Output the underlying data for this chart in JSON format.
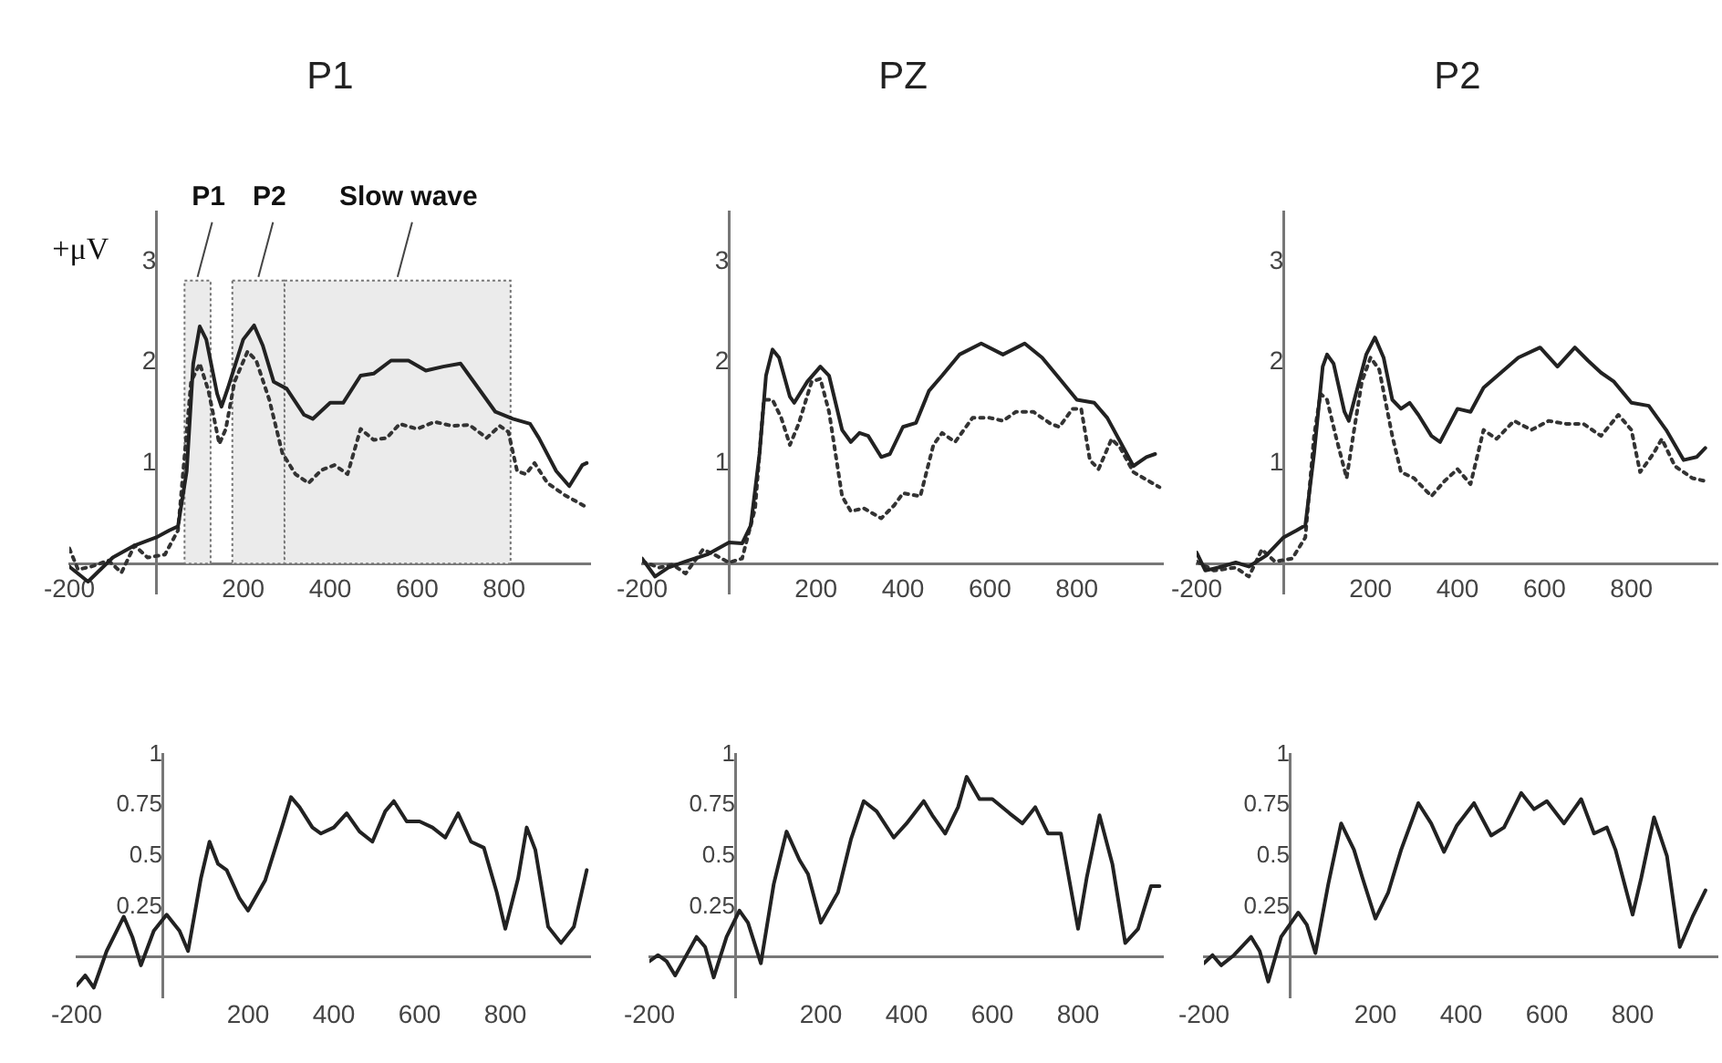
{
  "chart_data": [
    {
      "type": "line",
      "title": "P1",
      "ylabel": "+μV",
      "xlim": [
        -200,
        1000
      ],
      "xticks": [
        -200,
        200,
        400,
        600,
        800
      ],
      "ylim": [
        -0.3,
        3.5
      ],
      "yticks": [
        1,
        2,
        3
      ],
      "bands": [
        {
          "axis": "x",
          "from": 65,
          "to": 125,
          "label": "P1",
          "color": "#ebebeb"
        },
        {
          "axis": "x",
          "from": 175,
          "to": 295,
          "label": "P2",
          "color": "#ebebeb"
        },
        {
          "axis": "x",
          "from": 295,
          "to": 815,
          "label": "Slow wave",
          "color": "#ebebeb"
        }
      ],
      "series": [
        {
          "color": "#222222",
          "line_style": "solid",
          "x": [
            -200,
            -157,
            -100,
            -50,
            0,
            30,
            50,
            70,
            85,
            100,
            115,
            140,
            150,
            165,
            200,
            225,
            245,
            270,
            300,
            340,
            360,
            400,
            430,
            470,
            500,
            540,
            580,
            620,
            660,
            700,
            740,
            780,
            820,
            860,
            880,
            920,
            950,
            980,
            990
          ],
          "values": [
            -0.03,
            -0.18,
            0.06,
            0.18,
            0.26,
            0.33,
            0.37,
            0.92,
            1.99,
            2.36,
            2.23,
            1.69,
            1.56,
            1.75,
            2.23,
            2.37,
            2.17,
            1.81,
            1.74,
            1.48,
            1.44,
            1.6,
            1.6,
            1.87,
            1.89,
            2.02,
            2.02,
            1.92,
            1.96,
            1.99,
            1.75,
            1.51,
            1.44,
            1.39,
            1.25,
            0.92,
            0.77,
            0.98,
            1.0
          ]
        },
        {
          "color": "#333333",
          "line_style": "dotted",
          "x": [
            -200,
            -180,
            -150,
            -110,
            -80,
            -50,
            -20,
            20,
            50,
            80,
            100,
            120,
            145,
            160,
            180,
            210,
            230,
            260,
            290,
            320,
            350,
            380,
            410,
            440,
            470,
            500,
            530,
            560,
            600,
            640,
            680,
            720,
            760,
            790,
            810,
            830,
            850,
            870,
            900,
            940,
            990
          ],
          "values": [
            0.15,
            -0.06,
            -0.03,
            0.03,
            -0.09,
            0.18,
            0.06,
            0.09,
            0.33,
            1.81,
            1.99,
            1.72,
            1.19,
            1.34,
            1.81,
            2.11,
            2.02,
            1.63,
            1.1,
            0.89,
            0.8,
            0.93,
            0.98,
            0.89,
            1.34,
            1.23,
            1.25,
            1.39,
            1.34,
            1.41,
            1.37,
            1.38,
            1.25,
            1.37,
            1.31,
            0.92,
            0.89,
            1.0,
            0.8,
            0.68,
            0.56
          ]
        }
      ]
    },
    {
      "type": "line",
      "title": "PZ",
      "xlim": [
        -200,
        1000
      ],
      "xticks": [
        -200,
        200,
        400,
        600,
        800
      ],
      "ylim": [
        -0.3,
        3.5
      ],
      "yticks": [
        1,
        2,
        3
      ],
      "series": [
        {
          "color": "#222222",
          "line_style": "solid",
          "x": [
            -200,
            -170,
            -140,
            -100,
            -50,
            0,
            30,
            50,
            70,
            85,
            100,
            115,
            140,
            150,
            180,
            210,
            230,
            260,
            280,
            300,
            320,
            350,
            370,
            400,
            430,
            460,
            490,
            530,
            580,
            630,
            680,
            720,
            760,
            800,
            840,
            870,
            900,
            930,
            960,
            980
          ],
          "values": [
            0.05,
            -0.13,
            -0.04,
            0.02,
            0.09,
            0.21,
            0.2,
            0.38,
            1.09,
            1.87,
            2.13,
            2.05,
            1.66,
            1.6,
            1.81,
            1.96,
            1.87,
            1.33,
            1.21,
            1.3,
            1.27,
            1.06,
            1.09,
            1.36,
            1.4,
            1.72,
            1.87,
            2.08,
            2.19,
            2.08,
            2.19,
            2.05,
            1.84,
            1.63,
            1.6,
            1.45,
            1.21,
            0.97,
            1.06,
            1.09
          ]
        },
        {
          "color": "#333333",
          "line_style": "dotted",
          "x": [
            -200,
            -160,
            -130,
            -100,
            -60,
            -30,
            0,
            30,
            60,
            80,
            100,
            120,
            140,
            160,
            190,
            210,
            230,
            260,
            280,
            310,
            350,
            380,
            400,
            440,
            470,
            490,
            520,
            560,
            600,
            630,
            660,
            700,
            740,
            760,
            790,
            810,
            830,
            850,
            880,
            900,
            930,
            990
          ],
          "values": [
            0.02,
            -0.04,
            -0.01,
            -0.1,
            0.14,
            0.08,
            0.01,
            0.05,
            0.55,
            1.63,
            1.63,
            1.45,
            1.18,
            1.39,
            1.81,
            1.84,
            1.51,
            0.67,
            0.52,
            0.55,
            0.45,
            0.58,
            0.7,
            0.67,
            1.18,
            1.3,
            1.21,
            1.45,
            1.45,
            1.42,
            1.51,
            1.51,
            1.39,
            1.36,
            1.54,
            1.54,
            1.03,
            0.94,
            1.24,
            1.15,
            0.91,
            0.76
          ]
        }
      ]
    },
    {
      "type": "line",
      "title": "P2",
      "xlim": [
        -200,
        1000
      ],
      "xticks": [
        -200,
        200,
        400,
        600,
        800
      ],
      "ylim": [
        -0.3,
        3.5
      ],
      "yticks": [
        1,
        2,
        3
      ],
      "series": [
        {
          "color": "#222222",
          "line_style": "solid",
          "x": [
            -200,
            -180,
            -150,
            -110,
            -80,
            -40,
            0,
            30,
            50,
            70,
            90,
            100,
            115,
            140,
            150,
            170,
            190,
            210,
            230,
            250,
            270,
            290,
            310,
            340,
            360,
            400,
            430,
            460,
            500,
            540,
            590,
            630,
            670,
            700,
            730,
            760,
            800,
            840,
            880,
            920,
            950,
            970
          ],
          "values": [
            0.11,
            -0.07,
            -0.04,
            0.01,
            -0.03,
            0.08,
            0.26,
            0.33,
            0.38,
            1.09,
            1.96,
            2.08,
            1.99,
            1.51,
            1.42,
            1.75,
            2.08,
            2.25,
            2.05,
            1.63,
            1.54,
            1.6,
            1.48,
            1.27,
            1.21,
            1.54,
            1.51,
            1.75,
            1.9,
            2.05,
            2.15,
            1.96,
            2.15,
            2.02,
            1.9,
            1.81,
            1.6,
            1.57,
            1.33,
            1.03,
            1.06,
            1.15
          ]
        },
        {
          "color": "#333333",
          "line_style": "dotted",
          "x": [
            -200,
            -160,
            -110,
            -80,
            -50,
            -20,
            20,
            50,
            70,
            85,
            100,
            120,
            145,
            160,
            180,
            200,
            220,
            250,
            270,
            300,
            340,
            370,
            400,
            430,
            460,
            490,
            530,
            570,
            610,
            650,
            690,
            730,
            770,
            800,
            820,
            850,
            870,
            900,
            940,
            970
          ],
          "values": [
            0.02,
            -0.07,
            -0.04,
            -0.13,
            0.14,
            0.02,
            0.05,
            0.26,
            1.27,
            1.69,
            1.63,
            1.27,
            0.85,
            1.27,
            1.81,
            2.05,
            1.93,
            1.27,
            0.91,
            0.85,
            0.67,
            0.82,
            0.94,
            0.79,
            1.33,
            1.24,
            1.42,
            1.33,
            1.42,
            1.39,
            1.39,
            1.27,
            1.48,
            1.33,
            0.91,
            1.09,
            1.24,
            0.97,
            0.85,
            0.82
          ]
        }
      ]
    },
    {
      "type": "line",
      "xlim": [
        -200,
        1000
      ],
      "xticks": [
        -200,
        200,
        400,
        600,
        800
      ],
      "ylim": [
        -0.2,
        1
      ],
      "yticks": [
        0.25,
        0.5,
        0.75,
        1
      ],
      "color": "#222222",
      "x": [
        -200,
        -180,
        -160,
        -130,
        -90,
        -70,
        -50,
        -20,
        10,
        40,
        60,
        90,
        110,
        130,
        150,
        180,
        200,
        240,
        280,
        300,
        320,
        350,
        370,
        400,
        430,
        460,
        490,
        520,
        540,
        570,
        600,
        630,
        660,
        690,
        720,
        750,
        780,
        800,
        830,
        850,
        870,
        900,
        930,
        960,
        990
      ],
      "values": [
        -0.14,
        -0.09,
        -0.15,
        0.03,
        0.2,
        0.1,
        -0.04,
        0.13,
        0.21,
        0.13,
        0.03,
        0.39,
        0.57,
        0.46,
        0.43,
        0.29,
        0.23,
        0.38,
        0.65,
        0.79,
        0.74,
        0.64,
        0.61,
        0.64,
        0.71,
        0.62,
        0.57,
        0.72,
        0.77,
        0.67,
        0.67,
        0.64,
        0.59,
        0.71,
        0.57,
        0.54,
        0.32,
        0.14,
        0.39,
        0.64,
        0.53,
        0.15,
        0.07,
        0.15,
        0.43
      ]
    },
    {
      "type": "line",
      "xlim": [
        -200,
        1000
      ],
      "xticks": [
        -200,
        200,
        400,
        600,
        800
      ],
      "ylim": [
        -0.2,
        1
      ],
      "yticks": [
        0.25,
        0.5,
        0.75,
        1
      ],
      "color": "#222222",
      "x": [
        -200,
        -180,
        -160,
        -140,
        -90,
        -70,
        -50,
        -20,
        10,
        30,
        60,
        90,
        120,
        150,
        170,
        200,
        240,
        270,
        300,
        330,
        370,
        400,
        440,
        460,
        490,
        520,
        540,
        570,
        600,
        640,
        670,
        700,
        730,
        760,
        800,
        820,
        850,
        880,
        910,
        940,
        970,
        990
      ],
      "values": [
        -0.02,
        0.01,
        -0.02,
        -0.09,
        0.1,
        0.05,
        -0.1,
        0.1,
        0.23,
        0.17,
        -0.03,
        0.36,
        0.62,
        0.48,
        0.41,
        0.17,
        0.32,
        0.58,
        0.77,
        0.72,
        0.59,
        0.66,
        0.77,
        0.7,
        0.61,
        0.74,
        0.89,
        0.78,
        0.78,
        0.71,
        0.66,
        0.74,
        0.61,
        0.61,
        0.14,
        0.39,
        0.7,
        0.46,
        0.07,
        0.14,
        0.35,
        0.35
      ]
    },
    {
      "type": "line",
      "xlim": [
        -200,
        1000
      ],
      "xticks": [
        -200,
        200,
        400,
        600,
        800
      ],
      "ylim": [
        -0.2,
        1
      ],
      "yticks": [
        0.25,
        0.5,
        0.75,
        1
      ],
      "color": "#222222",
      "x": [
        -200,
        -180,
        -160,
        -130,
        -90,
        -70,
        -50,
        -20,
        20,
        40,
        60,
        90,
        120,
        150,
        170,
        200,
        230,
        260,
        300,
        330,
        360,
        390,
        430,
        470,
        500,
        540,
        570,
        600,
        640,
        680,
        710,
        740,
        760,
        800,
        820,
        850,
        880,
        910,
        940,
        970
      ],
      "values": [
        -0.03,
        0.01,
        -0.04,
        0.01,
        0.1,
        0.03,
        -0.12,
        0.1,
        0.22,
        0.16,
        0.02,
        0.36,
        0.66,
        0.53,
        0.39,
        0.19,
        0.32,
        0.53,
        0.76,
        0.66,
        0.52,
        0.65,
        0.76,
        0.6,
        0.64,
        0.81,
        0.73,
        0.77,
        0.66,
        0.78,
        0.61,
        0.64,
        0.53,
        0.21,
        0.39,
        0.69,
        0.5,
        0.05,
        0.2,
        0.33
      ]
    }
  ]
}
